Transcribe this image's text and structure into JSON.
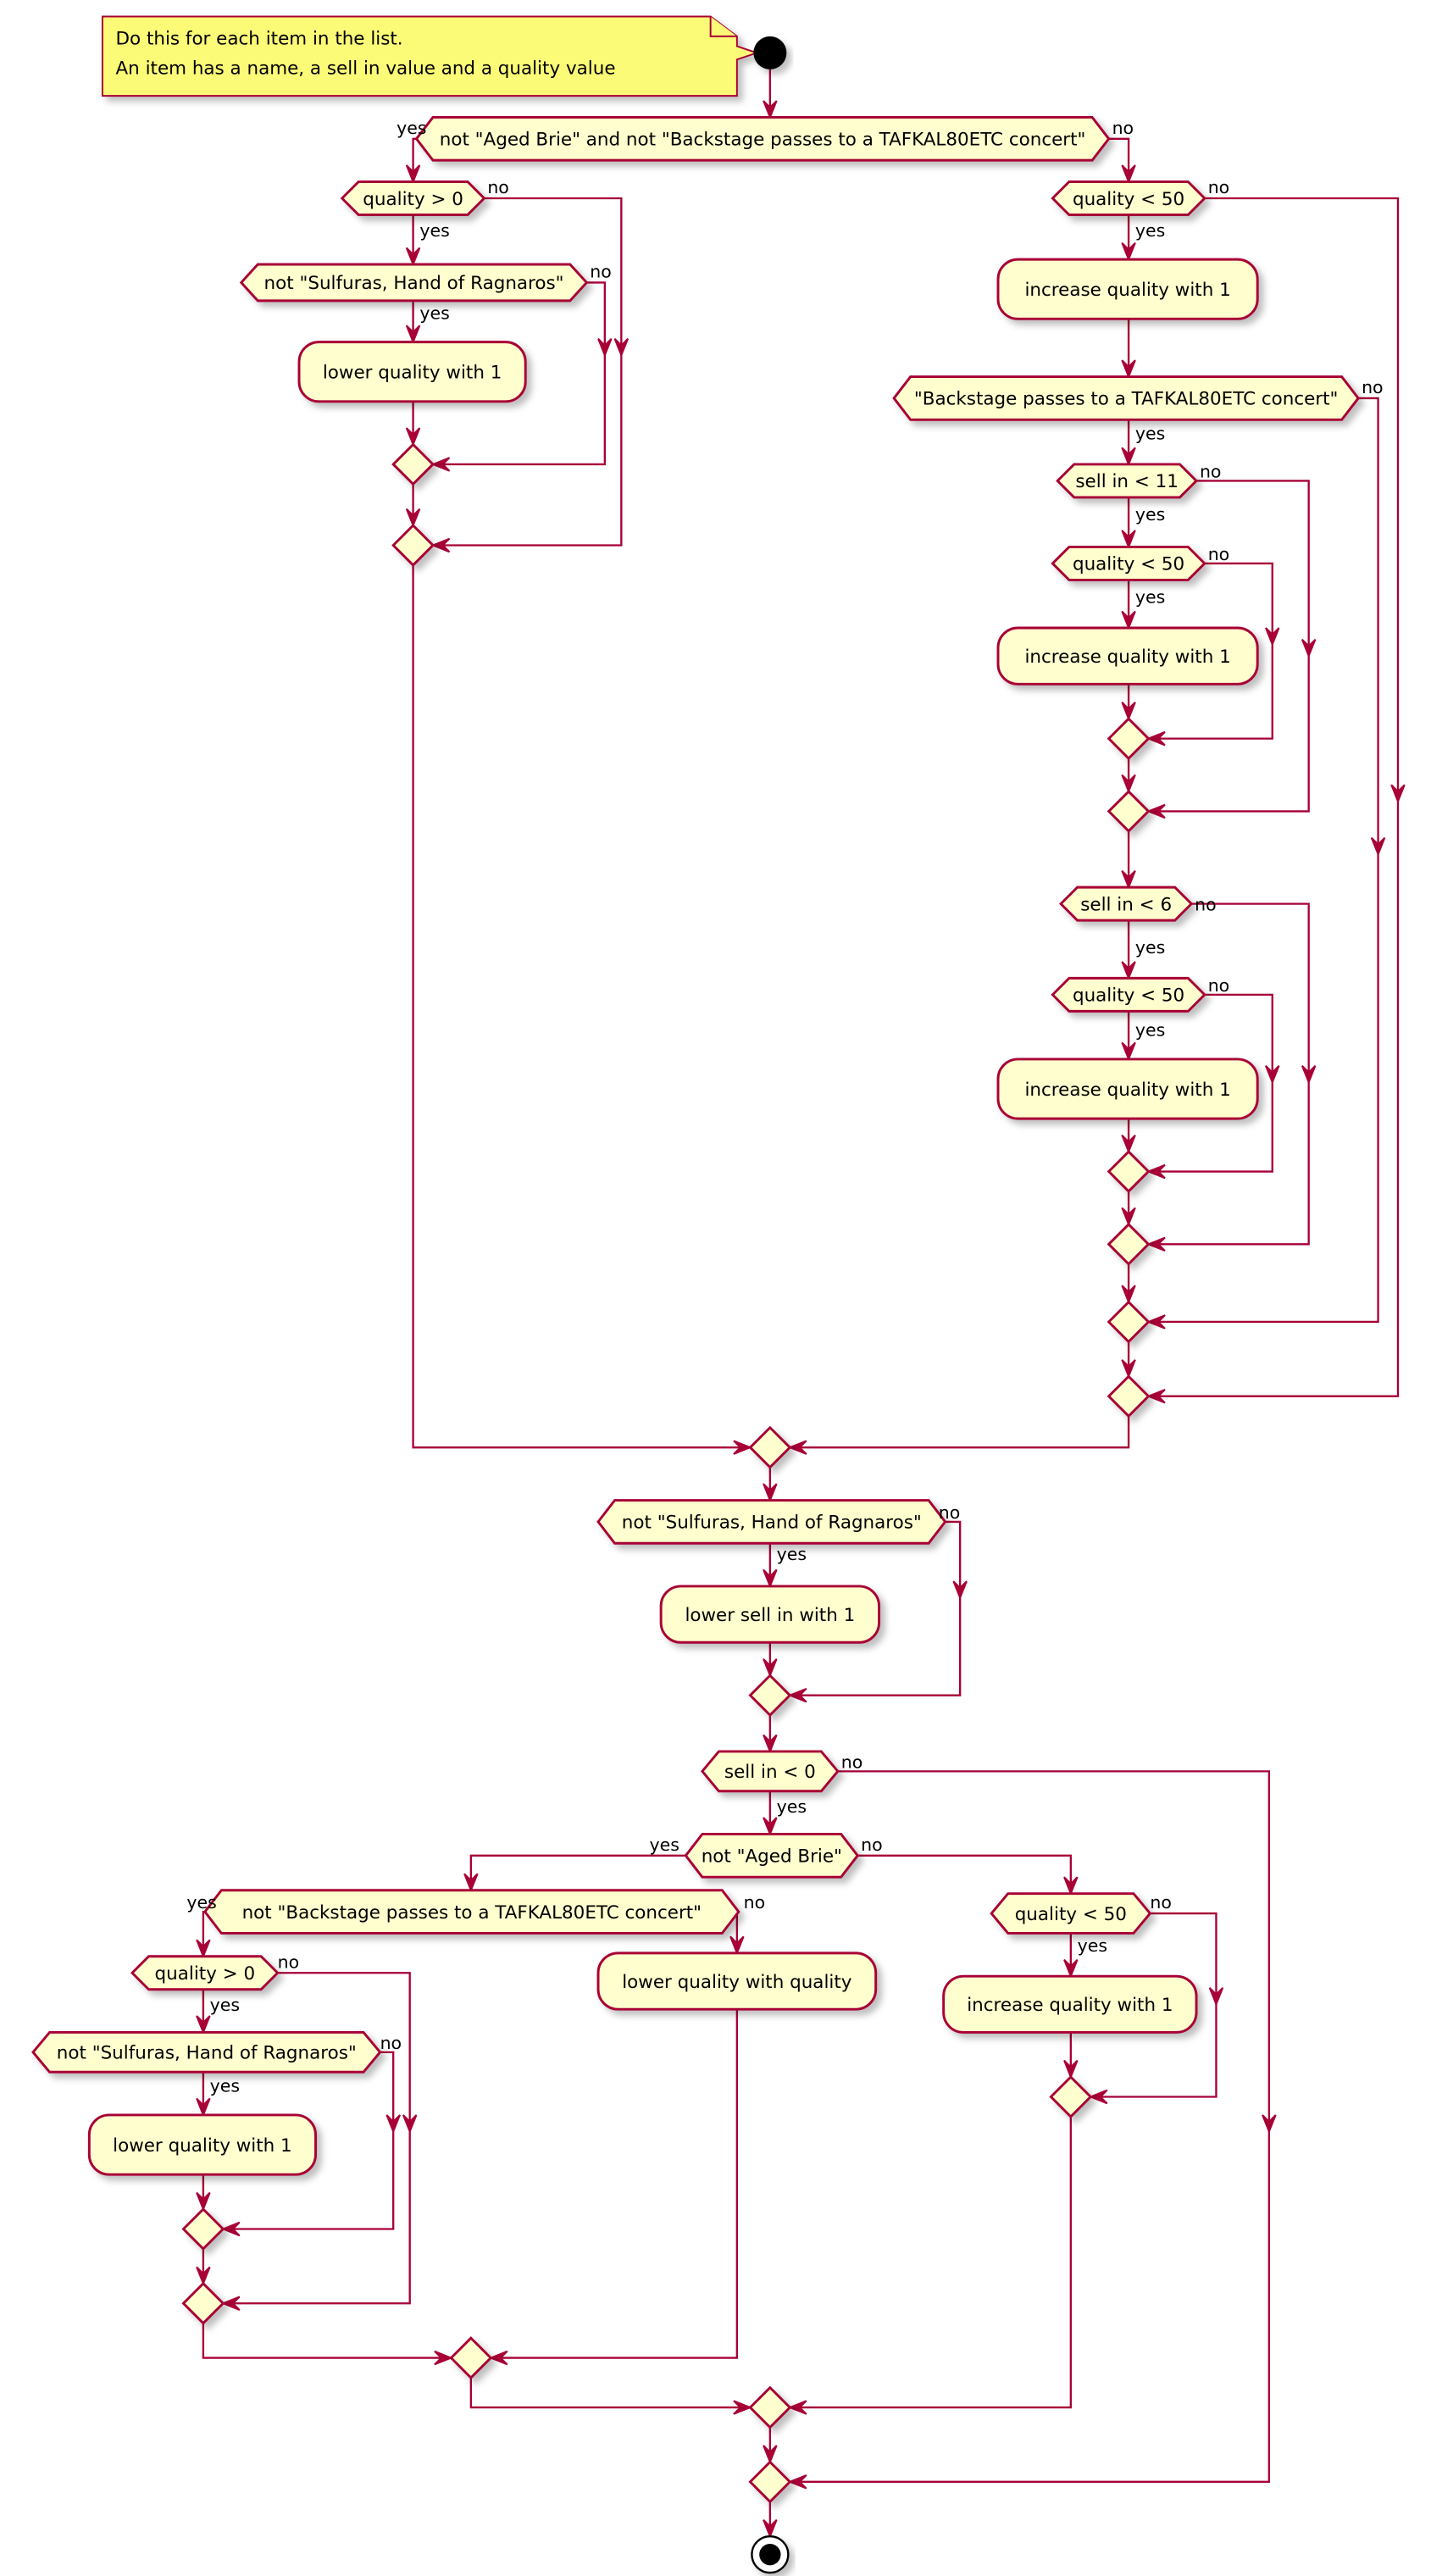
{
  "note": {
    "lines": [
      "Do this for each item in the list.",
      "An item has a name, a sell in value and a quality value"
    ]
  },
  "branch_labels": {
    "yes": "yes",
    "no": "no"
  },
  "nodes": {
    "d1": "not \"Aged Brie\" and not \"Backstage passes to a TAFKAL80ETC concert\"",
    "d2": "quality > 0",
    "d3": "not \"Sulfuras, Hand of Ragnaros\"",
    "a1": "lower quality with 1",
    "d4": "quality < 50",
    "a2": "increase quality with 1",
    "d5": "\"Backstage passes to a TAFKAL80ETC concert\"",
    "d6": "sell in < 11",
    "d7": "quality < 50",
    "a3": "increase quality with 1",
    "d8": "sell in < 6",
    "d9": "quality < 50",
    "a4": "increase quality with 1",
    "d10": "not \"Sulfuras, Hand of Ragnaros\"",
    "a5": "lower sell in with 1",
    "d11": "sell in < 0",
    "d12": "not \"Aged Brie\"",
    "d13": "not \"Backstage passes to a TAFKAL80ETC concert\"",
    "d14": "quality > 0",
    "d15": "not \"Sulfuras, Hand of Ragnaros\"",
    "a6": "lower quality with 1",
    "a7": "lower quality with quality",
    "d16": "quality < 50",
    "a8": "increase quality with 1"
  },
  "colors": {
    "stroke": "#A80036",
    "node_fill": "#FEFECE",
    "note_fill": "#FBFB77"
  }
}
